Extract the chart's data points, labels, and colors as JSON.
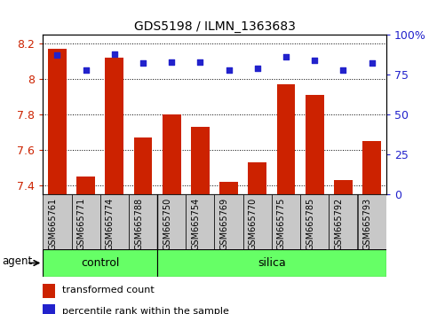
{
  "title": "GDS5198 / ILMN_1363683",
  "samples": [
    "GSM665761",
    "GSM665771",
    "GSM665774",
    "GSM665788",
    "GSM665750",
    "GSM665754",
    "GSM665769",
    "GSM665770",
    "GSM665775",
    "GSM665785",
    "GSM665792",
    "GSM665793"
  ],
  "transformed_count": [
    8.17,
    7.45,
    8.12,
    7.67,
    7.8,
    7.73,
    7.42,
    7.53,
    7.97,
    7.91,
    7.43,
    7.65
  ],
  "percentile_rank": [
    87,
    78,
    88,
    82,
    83,
    83,
    78,
    79,
    86,
    84,
    78,
    82
  ],
  "control_count": 4,
  "silica_count": 8,
  "group_labels": [
    "control",
    "silica"
  ],
  "group_color": "#66FF66",
  "group_divider": 4,
  "ylim_left": [
    7.35,
    8.25
  ],
  "ylim_right": [
    0,
    100
  ],
  "yticks_left": [
    7.4,
    7.6,
    7.8,
    8.0,
    8.2
  ],
  "yticks_right": [
    0,
    25,
    50,
    75,
    100
  ],
  "ytick_labels_left": [
    "7.4",
    "7.6",
    "7.8",
    "8",
    "8.2"
  ],
  "ytick_labels_right": [
    "0",
    "25",
    "50",
    "75",
    "100%"
  ],
  "bar_color": "#CC2200",
  "dot_color": "#2222CC",
  "bar_bottom": 7.35,
  "agent_label": "agent",
  "legend_bar_label": "transformed count",
  "legend_dot_label": "percentile rank within the sample",
  "background_color": "#ffffff",
  "tick_bg_color": "#C8C8C8",
  "grid_color": "#000000",
  "left_label_color": "#CC2200",
  "right_label_color": "#2222CC",
  "figsize": [
    4.83,
    3.54
  ],
  "dpi": 100
}
